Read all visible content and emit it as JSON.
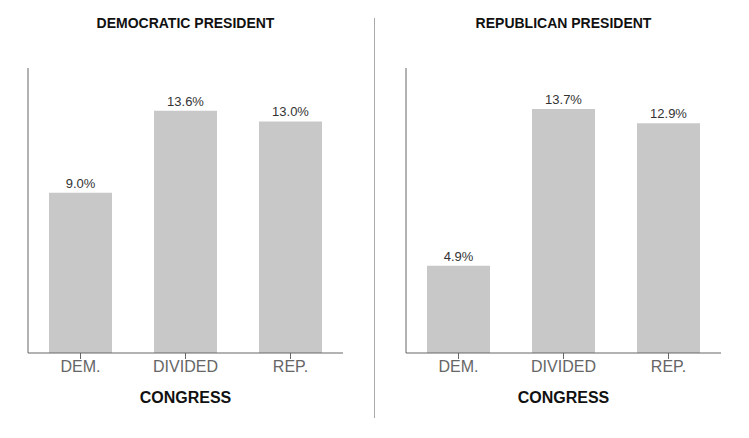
{
  "chart_data": [
    {
      "type": "bar",
      "title": "DEMOCRATIC PRESIDENT",
      "xlabel": "CONGRESS",
      "categories": [
        "DEM.",
        "DIVIDED",
        "REP."
      ],
      "values": [
        9.0,
        13.6,
        13.0
      ],
      "value_labels": [
        "9.0%",
        "13.6%",
        "13.0%"
      ],
      "color": "#c8c8c8",
      "ylim": [
        0,
        16
      ],
      "data_labels": true,
      "tick_labels": "x",
      "grid": false
    },
    {
      "type": "bar",
      "title": "REPUBLICAN PRESIDENT",
      "xlabel": "CONGRESS",
      "categories": [
        "DEM.",
        "DIVIDED",
        "REP."
      ],
      "values": [
        4.9,
        13.7,
        12.9
      ],
      "value_labels": [
        "4.9%",
        "13.7%",
        "12.9%"
      ],
      "color": "#c8c8c8",
      "ylim": [
        0,
        16
      ],
      "data_labels": true,
      "tick_labels": "x",
      "grid": false
    }
  ]
}
